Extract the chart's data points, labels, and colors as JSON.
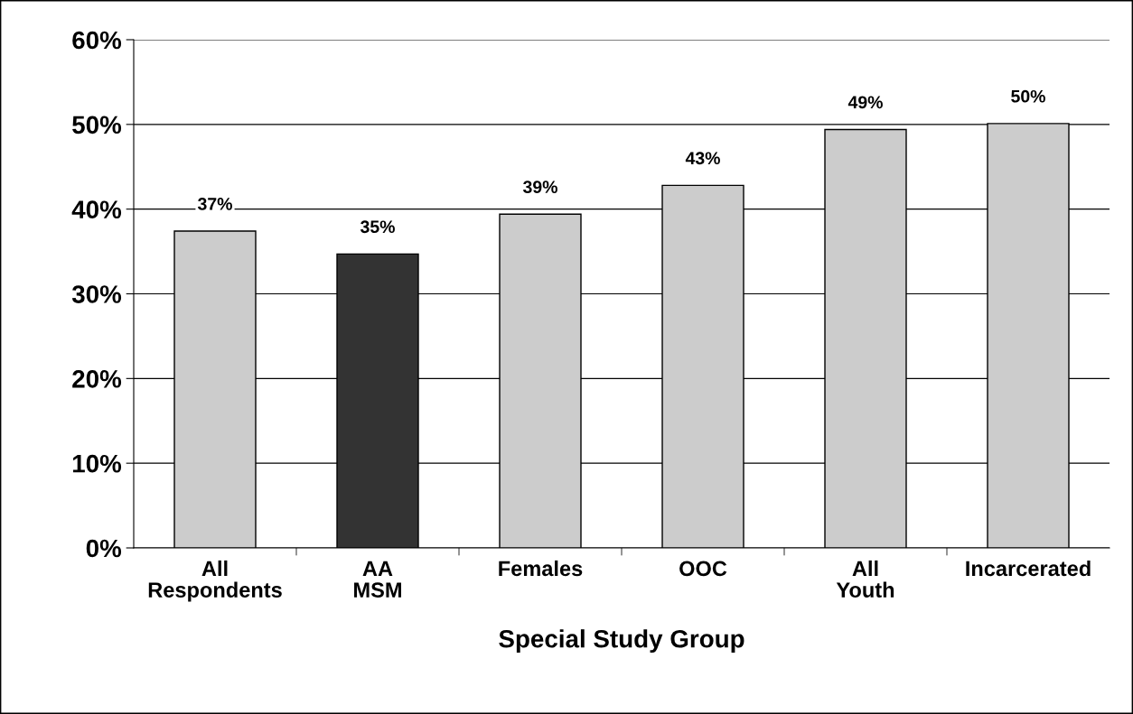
{
  "chart_data": {
    "type": "bar",
    "xlabel": "Special Study Group",
    "categories": [
      "All\nRespondents",
      "AA\nMSM",
      "Females",
      "OOC",
      "All\nYouth",
      "Incarcerated"
    ],
    "values": [
      37.4,
      34.7,
      39.4,
      42.8,
      49.4,
      50.1
    ],
    "value_labels": [
      "37%",
      "35%",
      "39%",
      "43%",
      "49%",
      "50%"
    ],
    "colors": [
      "#cccccc",
      "#333333",
      "#cccccc",
      "#cccccc",
      "#cccccc",
      "#cccccc"
    ],
    "ylim": [
      0,
      60
    ],
    "yticks": [
      {
        "value": 0,
        "label": "0%"
      },
      {
        "value": 10,
        "label": "10%"
      },
      {
        "value": 20,
        "label": "20%"
      },
      {
        "value": 30,
        "label": "30%"
      },
      {
        "value": 40,
        "label": "40%"
      },
      {
        "value": 50,
        "label": "50%"
      },
      {
        "value": 60,
        "label": "60%"
      }
    ],
    "grid": "y",
    "legend": false
  }
}
